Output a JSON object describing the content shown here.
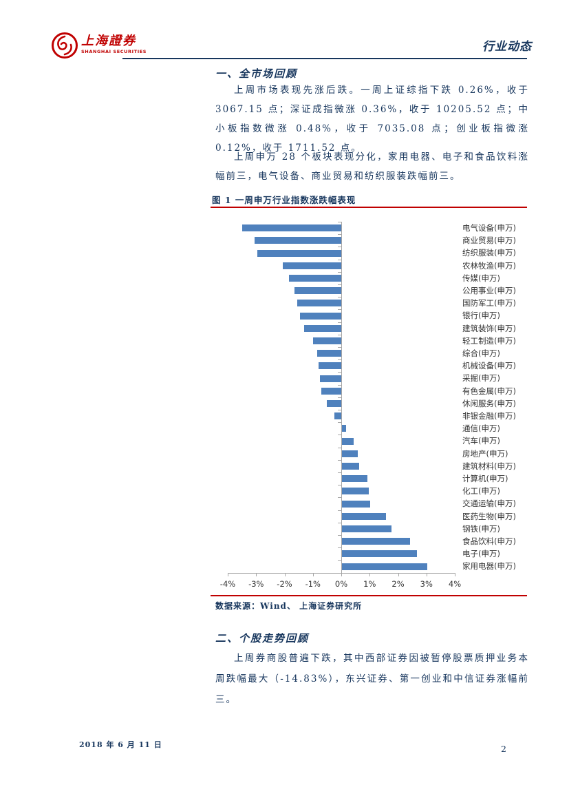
{
  "header": {
    "logo_cn": "上海證券",
    "logo_en": "SHANGHAI SECURITIES",
    "doc_type": "行业动态"
  },
  "section1": {
    "heading": "一、全市场回顾",
    "para1": "上周市场表现先涨后跌。一周上证综指下跌 0.26%，收于 3067.15 点；深证成指微涨 0.36%，收于 10205.52 点；中小板指数微涨 0.48%，收于 7035.08 点；创业板指微涨 0.12%，收于 1711.52 点。",
    "para2": "上周申万 28 个板块表现分化，家用电器、电子和食品饮料涨幅前三，电气设备、商业贸易和纺织服装跌幅前三。"
  },
  "figure": {
    "title": "图 1 一周申万行业指数涨跌幅表现",
    "source": "数据来源：Wind、 上海证券研究所"
  },
  "chart_data": {
    "type": "bar",
    "orientation": "horizontal",
    "title": "图 1 一周申万行业指数涨跌幅表现",
    "xlabel": "",
    "ylabel": "",
    "xlim": [
      -4,
      4
    ],
    "x_ticks": [
      "-4%",
      "-3%",
      "-2%",
      "-1%",
      "0%",
      "1%",
      "2%",
      "3%",
      "4%"
    ],
    "grid": false,
    "legend": "none",
    "bar_color": "#4F81BD",
    "categories": [
      "电气设备(申万)",
      "商业贸易(申万)",
      "纺织服装(申万)",
      "农林牧渔(申万)",
      "传媒(申万)",
      "公用事业(申万)",
      "国防军工(申万)",
      "银行(申万)",
      "建筑装饰(申万)",
      "轻工制造(申万)",
      "综合(申万)",
      "机械设备(申万)",
      "采掘(申万)",
      "有色金属(申万)",
      "休闲服务(申万)",
      "非银金融(申万)",
      "通信(申万)",
      "汽车(申万)",
      "房地产(申万)",
      "建筑材料(申万)",
      "计算机(申万)",
      "化工(申万)",
      "交通运输(申万)",
      "医药生物(申万)",
      "钢铁(申万)",
      "食品饮料(申万)",
      "电子(申万)",
      "家用电器(申万)"
    ],
    "values": [
      -3.5,
      -3.05,
      -2.95,
      -2.05,
      -1.85,
      -1.65,
      -1.55,
      -1.45,
      -1.3,
      -1.0,
      -0.85,
      -0.8,
      -0.75,
      -0.7,
      -0.5,
      -0.25,
      0.15,
      0.4,
      0.55,
      0.6,
      0.9,
      0.95,
      1.0,
      1.55,
      1.75,
      2.4,
      2.65,
      3.0
    ],
    "value_unit": "%"
  },
  "section2": {
    "heading": "二、个股走势回顾",
    "para1": "上周券商股普遍下跌，其中西部证券因被暂停股票质押业务本周跌幅最大（-14.83%），东兴证券、第一创业和中信证券涨幅前三。"
  },
  "footer": {
    "date": "2018 年 6 月 11 日",
    "page": "2"
  },
  "colors": {
    "navy": "#17365D",
    "red": "#C00000",
    "bar": "#4F81BD",
    "axis": "#A6A6A6"
  }
}
